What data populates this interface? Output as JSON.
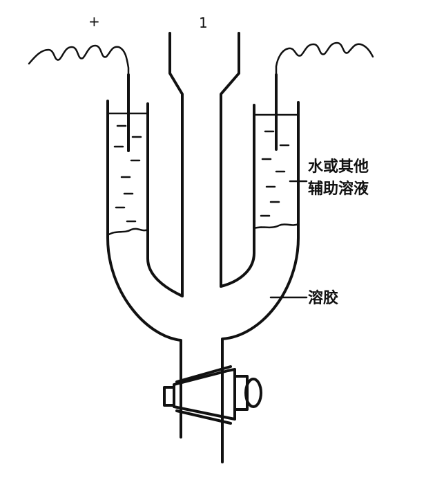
{
  "diagram": {
    "labels": {
      "plus": "+",
      "one": "1",
      "solution_line1": "水或其他",
      "solution_line2": "辅助溶液",
      "sol": "溶胶"
    }
  }
}
